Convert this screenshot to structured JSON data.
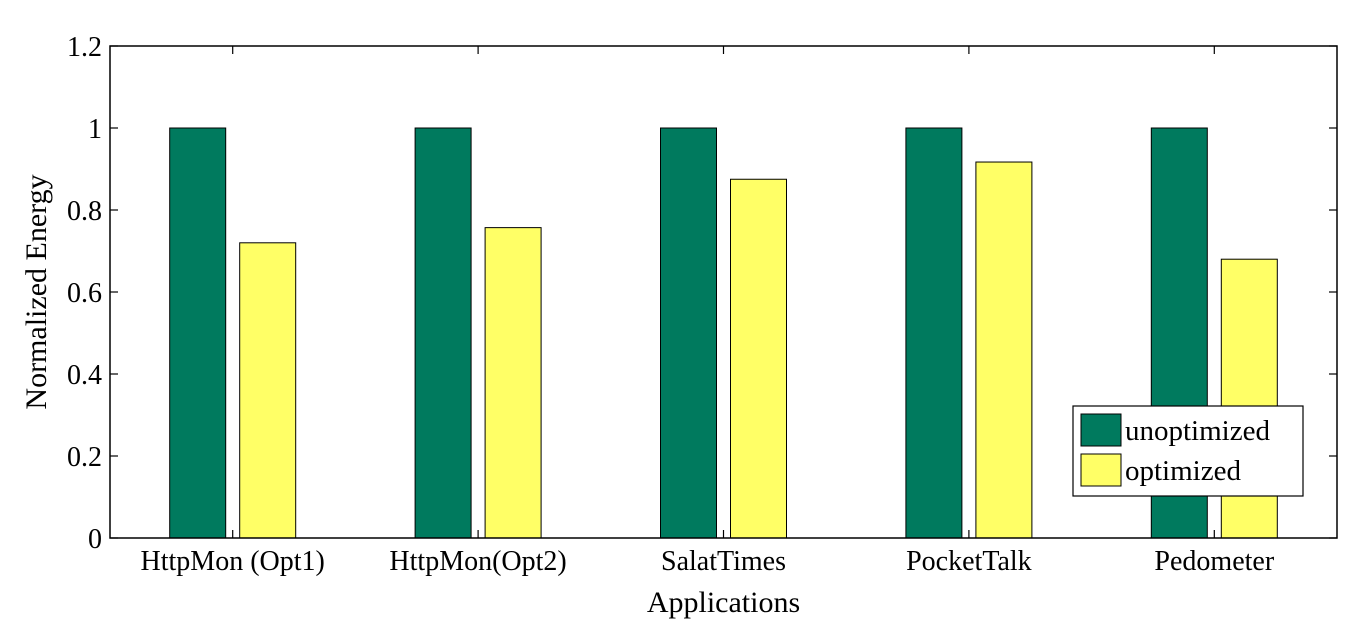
{
  "chart_data": {
    "type": "bar",
    "title": "",
    "xlabel": "Applications",
    "ylabel": "Normalized Energy",
    "categories": [
      "HttpMon (Opt1)",
      "HttpMon(Opt2)",
      "SalatTimes",
      "PocketTalk",
      "Pedometer"
    ],
    "series": [
      {
        "name": "unoptimized",
        "color": "#007a5e",
        "values": [
          1.0,
          1.0,
          1.0,
          1.0,
          1.0
        ]
      },
      {
        "name": "optimized",
        "color": "#ffff66",
        "values": [
          0.72,
          0.757,
          0.875,
          0.917,
          0.68
        ]
      }
    ],
    "ylim": [
      0,
      1.2
    ],
    "yticks": [
      "0",
      "0.2",
      "0.4",
      "0.6",
      "0.8",
      "1",
      "1.2"
    ],
    "grid": false,
    "legend": "bottom-right"
  }
}
